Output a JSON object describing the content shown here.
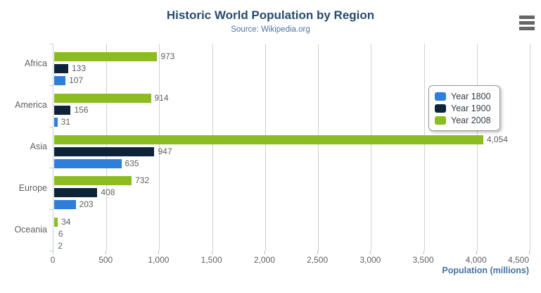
{
  "chart_data": {
    "type": "bar",
    "orientation": "horizontal",
    "title": "Historic World Population by Region",
    "subtitle": "Source: Wikipedia.org",
    "categories": [
      "Africa",
      "America",
      "Asia",
      "Europe",
      "Oceania"
    ],
    "series": [
      {
        "name": "Year 1800",
        "color": "#2f7ed8",
        "values": [
          107,
          31,
          635,
          203,
          2
        ]
      },
      {
        "name": "Year 1900",
        "color": "#0d233a",
        "values": [
          133,
          156,
          947,
          408,
          6
        ]
      },
      {
        "name": "Year 2008",
        "color": "#8bbc21",
        "values": [
          973,
          914,
          4054,
          732,
          34
        ]
      }
    ],
    "bar_order_top_to_bottom": [
      "Year 2008",
      "Year 1900",
      "Year 1800"
    ],
    "xlabel": "Population (millions)",
    "xlim": [
      0,
      4500
    ],
    "x_tick_step": 500,
    "x_tick_labels": [
      "0",
      "500",
      "1,000",
      "1,500",
      "2,000",
      "2,500",
      "3,000",
      "3,500",
      "4,000",
      "4,500"
    ],
    "grid": true,
    "data_labels": true,
    "legend_position": "right"
  },
  "legend": {
    "items": [
      {
        "label": "Year 1800",
        "color": "#2f7ed8"
      },
      {
        "label": "Year 1900",
        "color": "#0d233a"
      },
      {
        "label": "Year 2008",
        "color": "#8bbc21"
      }
    ]
  },
  "toolbar": {
    "menu_icon": "hamburger"
  },
  "colors": {
    "title": "#274b6d",
    "subtitle": "#4d759e",
    "axis_title": "#4572a7",
    "tick_label": "#606060",
    "data_label": "#606060",
    "gridline": "#d0d0d0",
    "axis_line": "#c0d0e0",
    "legend_border": "#999999",
    "menu_icon": "#666666"
  }
}
